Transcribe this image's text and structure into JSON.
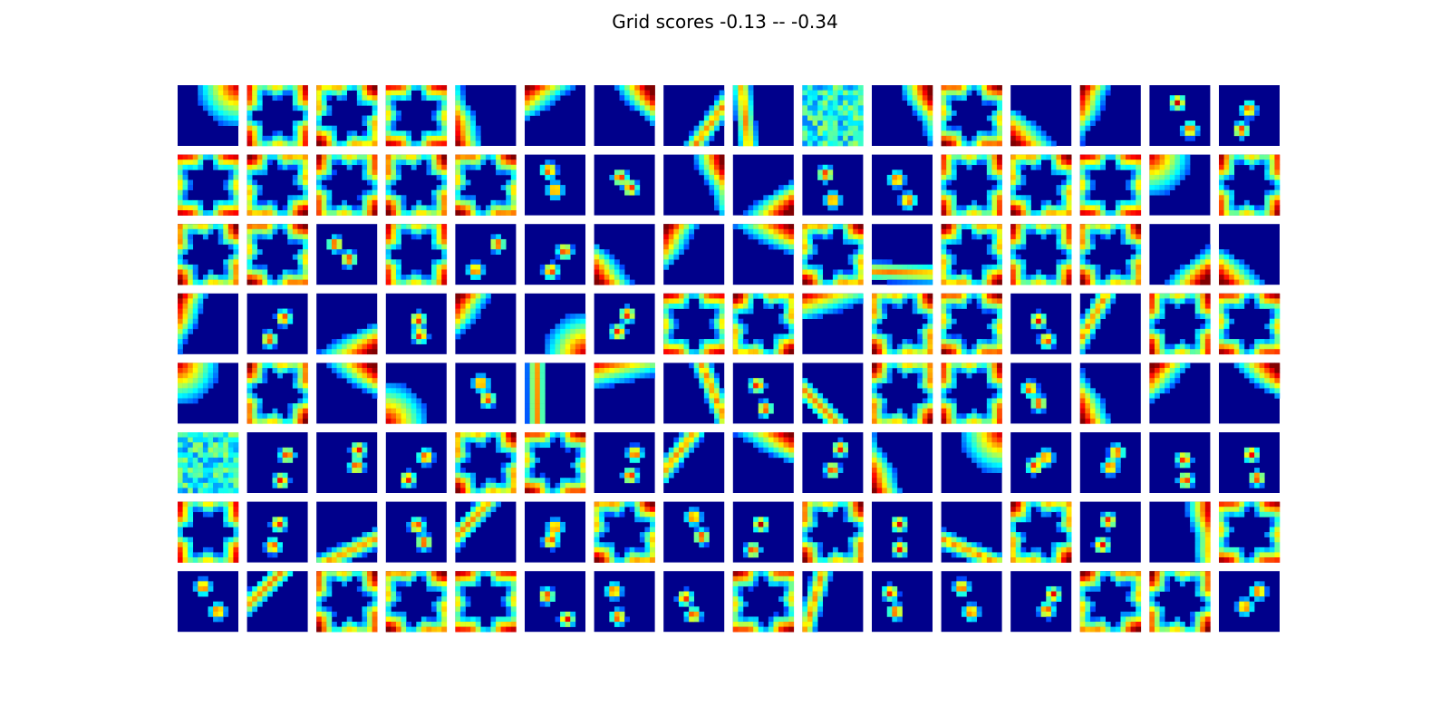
{
  "figure": {
    "title": "Grid scores -0.13 -- -0.34"
  },
  "chart_data": {
    "type": "heatmap",
    "title": "Grid scores -0.13 -- -0.34",
    "rows": 8,
    "cols": 16,
    "colormap": "jet",
    "colors": {
      "low": "#00008b",
      "mid": "#00e8ff",
      "high": "#d40000"
    },
    "axes_visible": false,
    "panels": [
      {
        "pattern": "corner",
        "seed": 1
      },
      {
        "pattern": "ring",
        "seed": 2
      },
      {
        "pattern": "ring",
        "seed": 3
      },
      {
        "pattern": "ring",
        "seed": 4
      },
      {
        "pattern": "edge",
        "seed": 5
      },
      {
        "pattern": "edge",
        "seed": 6
      },
      {
        "pattern": "edge",
        "seed": 7
      },
      {
        "pattern": "stripe",
        "seed": 8
      },
      {
        "pattern": "stripe",
        "seed": 9
      },
      {
        "pattern": "noise",
        "seed": 10
      },
      {
        "pattern": "edge",
        "seed": 11
      },
      {
        "pattern": "ring",
        "seed": 12
      },
      {
        "pattern": "edge",
        "seed": 13
      },
      {
        "pattern": "edge",
        "seed": 14
      },
      {
        "pattern": "blobs",
        "seed": 15
      },
      {
        "pattern": "blobs",
        "seed": 16
      },
      {
        "pattern": "ring",
        "seed": 17
      },
      {
        "pattern": "ring",
        "seed": 18
      },
      {
        "pattern": "ring",
        "seed": 19
      },
      {
        "pattern": "ring",
        "seed": 20
      },
      {
        "pattern": "ring",
        "seed": 21
      },
      {
        "pattern": "blobs",
        "seed": 22
      },
      {
        "pattern": "blobs",
        "seed": 23
      },
      {
        "pattern": "edge",
        "seed": 24
      },
      {
        "pattern": "edge",
        "seed": 25
      },
      {
        "pattern": "blobs",
        "seed": 26
      },
      {
        "pattern": "blobs",
        "seed": 27
      },
      {
        "pattern": "ring",
        "seed": 28
      },
      {
        "pattern": "ring",
        "seed": 29
      },
      {
        "pattern": "ring",
        "seed": 30
      },
      {
        "pattern": "corner",
        "seed": 31
      },
      {
        "pattern": "ring",
        "seed": 32
      },
      {
        "pattern": "ring",
        "seed": 33
      },
      {
        "pattern": "ring",
        "seed": 34
      },
      {
        "pattern": "blobs",
        "seed": 35
      },
      {
        "pattern": "ring",
        "seed": 36
      },
      {
        "pattern": "blobs",
        "seed": 37
      },
      {
        "pattern": "blobs",
        "seed": 38
      },
      {
        "pattern": "edge",
        "seed": 39
      },
      {
        "pattern": "edge",
        "seed": 40
      },
      {
        "pattern": "edge",
        "seed": 41
      },
      {
        "pattern": "ring",
        "seed": 42
      },
      {
        "pattern": "stripe",
        "seed": 43
      },
      {
        "pattern": "ring",
        "seed": 44
      },
      {
        "pattern": "ring",
        "seed": 45
      },
      {
        "pattern": "ring",
        "seed": 46
      },
      {
        "pattern": "edge",
        "seed": 47
      },
      {
        "pattern": "edge",
        "seed": 48
      },
      {
        "pattern": "edge",
        "seed": 49
      },
      {
        "pattern": "blobs",
        "seed": 50
      },
      {
        "pattern": "edge",
        "seed": 51
      },
      {
        "pattern": "blobs",
        "seed": 52
      },
      {
        "pattern": "edge",
        "seed": 53
      },
      {
        "pattern": "corner",
        "seed": 54
      },
      {
        "pattern": "blobs",
        "seed": 55
      },
      {
        "pattern": "ring",
        "seed": 56
      },
      {
        "pattern": "ring",
        "seed": 57
      },
      {
        "pattern": "edge",
        "seed": 58
      },
      {
        "pattern": "ring",
        "seed": 59
      },
      {
        "pattern": "ring",
        "seed": 60
      },
      {
        "pattern": "blobs",
        "seed": 61
      },
      {
        "pattern": "stripe",
        "seed": 62
      },
      {
        "pattern": "ring",
        "seed": 63
      },
      {
        "pattern": "ring",
        "seed": 64
      },
      {
        "pattern": "corner",
        "seed": 65
      },
      {
        "pattern": "ring",
        "seed": 66
      },
      {
        "pattern": "edge",
        "seed": 67
      },
      {
        "pattern": "corner",
        "seed": 68
      },
      {
        "pattern": "blobs",
        "seed": 69
      },
      {
        "pattern": "stripe",
        "seed": 70
      },
      {
        "pattern": "edge",
        "seed": 71
      },
      {
        "pattern": "stripe",
        "seed": 72
      },
      {
        "pattern": "blobs",
        "seed": 73
      },
      {
        "pattern": "stripe",
        "seed": 74
      },
      {
        "pattern": "ring",
        "seed": 75
      },
      {
        "pattern": "ring",
        "seed": 76
      },
      {
        "pattern": "blobs",
        "seed": 77
      },
      {
        "pattern": "edge",
        "seed": 78
      },
      {
        "pattern": "edge",
        "seed": 79
      },
      {
        "pattern": "edge",
        "seed": 80
      },
      {
        "pattern": "noise",
        "seed": 81
      },
      {
        "pattern": "blobs",
        "seed": 82
      },
      {
        "pattern": "blobs",
        "seed": 83
      },
      {
        "pattern": "blobs",
        "seed": 84
      },
      {
        "pattern": "ring",
        "seed": 85
      },
      {
        "pattern": "ring",
        "seed": 86
      },
      {
        "pattern": "blobs",
        "seed": 87
      },
      {
        "pattern": "stripe",
        "seed": 88
      },
      {
        "pattern": "edge",
        "seed": 89
      },
      {
        "pattern": "blobs",
        "seed": 90
      },
      {
        "pattern": "edge",
        "seed": 91
      },
      {
        "pattern": "corner",
        "seed": 92
      },
      {
        "pattern": "blobs",
        "seed": 93
      },
      {
        "pattern": "blobs",
        "seed": 94
      },
      {
        "pattern": "blobs",
        "seed": 95
      },
      {
        "pattern": "blobs",
        "seed": 96
      },
      {
        "pattern": "ring",
        "seed": 97
      },
      {
        "pattern": "blobs",
        "seed": 98
      },
      {
        "pattern": "stripe",
        "seed": 99
      },
      {
        "pattern": "blobs",
        "seed": 100
      },
      {
        "pattern": "stripe",
        "seed": 101
      },
      {
        "pattern": "blobs",
        "seed": 102
      },
      {
        "pattern": "ring",
        "seed": 103
      },
      {
        "pattern": "blobs",
        "seed": 104
      },
      {
        "pattern": "blobs",
        "seed": 105
      },
      {
        "pattern": "ring",
        "seed": 106
      },
      {
        "pattern": "blobs",
        "seed": 107
      },
      {
        "pattern": "stripe",
        "seed": 108
      },
      {
        "pattern": "ring",
        "seed": 109
      },
      {
        "pattern": "blobs",
        "seed": 110
      },
      {
        "pattern": "edge",
        "seed": 111
      },
      {
        "pattern": "ring",
        "seed": 112
      },
      {
        "pattern": "blobs",
        "seed": 113
      },
      {
        "pattern": "stripe",
        "seed": 114
      },
      {
        "pattern": "ring",
        "seed": 115
      },
      {
        "pattern": "ring",
        "seed": 116
      },
      {
        "pattern": "ring",
        "seed": 117
      },
      {
        "pattern": "blobs",
        "seed": 118
      },
      {
        "pattern": "blobs",
        "seed": 119
      },
      {
        "pattern": "blobs",
        "seed": 120
      },
      {
        "pattern": "ring",
        "seed": 121
      },
      {
        "pattern": "stripe",
        "seed": 122
      },
      {
        "pattern": "blobs",
        "seed": 123
      },
      {
        "pattern": "blobs",
        "seed": 124
      },
      {
        "pattern": "blobs",
        "seed": 125
      },
      {
        "pattern": "ring",
        "seed": 126
      },
      {
        "pattern": "ring",
        "seed": 127
      },
      {
        "pattern": "blobs",
        "seed": 128
      }
    ]
  }
}
